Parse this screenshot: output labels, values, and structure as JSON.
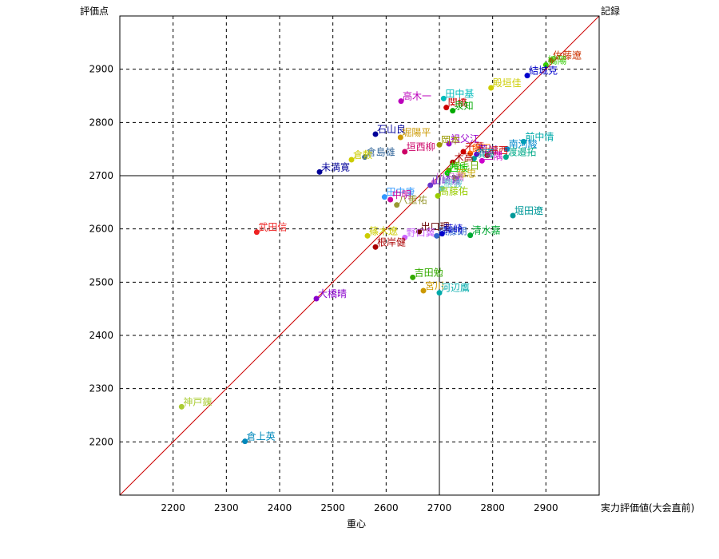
{
  "chart_data": {
    "type": "scatter",
    "title": "",
    "xlabel": "実力評価値(大会直前)",
    "ylabel": "評価点",
    "x_center_label": "重心",
    "y_corner_label": "記録",
    "xlim": [
      2100,
      3000
    ],
    "ylim": [
      2100,
      3000
    ],
    "x_ticks": [
      2200,
      2300,
      2400,
      2500,
      2600,
      2700,
      2800,
      2900
    ],
    "y_ticks": [
      2200,
      2300,
      2400,
      2500,
      2600,
      2700,
      2800,
      2900
    ],
    "grid": true,
    "diagonal_line": true,
    "diagonal_color": "#cc0000",
    "reference_point": {
      "x": 2700,
      "y": 2700
    },
    "points": [
      {
        "name": "佐藤遼",
        "x": 2910,
        "y": 2917,
        "color": "#cc3300"
      },
      {
        "name": "橋陽",
        "x": 2900,
        "y": 2908,
        "color": "#33cc00"
      },
      {
        "name": "結城克",
        "x": 2865,
        "y": 2888,
        "color": "#0000cc"
      },
      {
        "name": "殿垣佳",
        "x": 2797,
        "y": 2865,
        "color": "#cccc00"
      },
      {
        "name": "田中基",
        "x": 2708,
        "y": 2845,
        "color": "#00bbbb"
      },
      {
        "name": "高木一",
        "x": 2628,
        "y": 2840,
        "color": "#bb00bb"
      },
      {
        "name": "関橋",
        "x": 2713,
        "y": 2828,
        "color": "#cc0000"
      },
      {
        "name": "泉知",
        "x": 2725,
        "y": 2822,
        "color": "#00aa00"
      },
      {
        "name": "石山良",
        "x": 2580,
        "y": 2778,
        "color": "#000099"
      },
      {
        "name": "堀陽平",
        "x": 2627,
        "y": 2772,
        "color": "#cc9900"
      },
      {
        "name": "前中情",
        "x": 2858,
        "y": 2764,
        "color": "#00aaaa"
      },
      {
        "name": "祖父江",
        "x": 2718,
        "y": 2760,
        "color": "#9900cc"
      },
      {
        "name": "岡本",
        "x": 2700,
        "y": 2758,
        "color": "#999900"
      },
      {
        "name": "南河駿",
        "x": 2827,
        "y": 2750,
        "color": "#0088cc"
      },
      {
        "name": "垣西柳",
        "x": 2635,
        "y": 2745,
        "color": "#cc0066"
      },
      {
        "name": "千葉",
        "x": 2745,
        "y": 2745,
        "color": "#cc0000"
      },
      {
        "name": "飯田",
        "x": 2758,
        "y": 2742,
        "color": "#ff6600"
      },
      {
        "name": "荒川",
        "x": 2770,
        "y": 2740,
        "color": "#6600cc"
      },
      {
        "name": "福西",
        "x": 2790,
        "y": 2738,
        "color": "#cc0000"
      },
      {
        "name": "渡邉拓",
        "x": 2825,
        "y": 2735,
        "color": "#00aa88"
      },
      {
        "name": "須藤",
        "x": 2765,
        "y": 2732,
        "color": "#009999"
      },
      {
        "name": "倉島雄",
        "x": 2560,
        "y": 2735,
        "color": "#336699"
      },
      {
        "name": "倉敷",
        "x": 2535,
        "y": 2730,
        "color": "#cccc00"
      },
      {
        "name": "木高",
        "x": 2725,
        "y": 2725,
        "color": "#aa0000"
      },
      {
        "name": "三隅",
        "x": 2780,
        "y": 2728,
        "color": "#cc00cc"
      },
      {
        "name": "未満寛",
        "x": 2475,
        "y": 2707,
        "color": "#000099"
      },
      {
        "name": "増毛日",
        "x": 2718,
        "y": 2710,
        "color": "#66aa00"
      },
      {
        "name": "西坂",
        "x": 2715,
        "y": 2705,
        "color": "#00cc00"
      },
      {
        "name": "藤忠",
        "x": 2730,
        "y": 2695,
        "color": "#ccaa00"
      },
      {
        "name": "川沢嘉",
        "x": 2690,
        "y": 2688,
        "color": "#cc66cc"
      },
      {
        "name": "山崎嘉",
        "x": 2683,
        "y": 2682,
        "color": "#6633cc"
      },
      {
        "name": "根波",
        "x": 2705,
        "y": 2676,
        "color": "#66cccc"
      },
      {
        "name": "田中康",
        "x": 2597,
        "y": 2660,
        "color": "#3399ff"
      },
      {
        "name": "中明",
        "x": 2608,
        "y": 2655,
        "color": "#cc0099"
      },
      {
        "name": "八重祐",
        "x": 2620,
        "y": 2645,
        "color": "#999933"
      },
      {
        "name": "高藤佑",
        "x": 2697,
        "y": 2662,
        "color": "#99cc00"
      },
      {
        "name": "堀田遼",
        "x": 2838,
        "y": 2625,
        "color": "#009999"
      },
      {
        "name": "武田信",
        "x": 2357,
        "y": 2594,
        "color": "#ee2222"
      },
      {
        "name": "出口理",
        "x": 2662,
        "y": 2595,
        "color": "#660000"
      },
      {
        "name": "篠木遼",
        "x": 2565,
        "y": 2587,
        "color": "#cccc00"
      },
      {
        "name": "野口翼",
        "x": 2635,
        "y": 2584,
        "color": "#cc66ff"
      },
      {
        "name": "須藤朗",
        "x": 2695,
        "y": 2587,
        "color": "#3366cc"
      },
      {
        "name": "藤崎",
        "x": 2705,
        "y": 2591,
        "color": "#0000cc"
      },
      {
        "name": "清水嘉",
        "x": 2758,
        "y": 2588,
        "color": "#00aa33"
      },
      {
        "name": "根岸健",
        "x": 2580,
        "y": 2566,
        "color": "#aa0000"
      },
      {
        "name": "吉田勉",
        "x": 2650,
        "y": 2509,
        "color": "#33aa00"
      },
      {
        "name": "宮川",
        "x": 2670,
        "y": 2484,
        "color": "#cc9900"
      },
      {
        "name": "河辺鷹",
        "x": 2700,
        "y": 2480,
        "color": "#00aaaa"
      },
      {
        "name": "大橋晴",
        "x": 2469,
        "y": 2469,
        "color": "#8800cc"
      },
      {
        "name": "神戸錬",
        "x": 2216,
        "y": 2266,
        "color": "#aacc33"
      },
      {
        "name": "倉上英",
        "x": 2335,
        "y": 2201,
        "color": "#0088bb"
      }
    ]
  }
}
